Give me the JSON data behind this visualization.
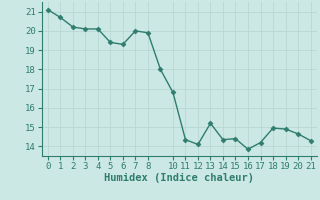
{
  "x": [
    0,
    1,
    2,
    3,
    4,
    5,
    6,
    7,
    8,
    9,
    10,
    11,
    12,
    13,
    14,
    15,
    16,
    17,
    18,
    19,
    20,
    21
  ],
  "y": [
    21.1,
    20.7,
    20.2,
    20.1,
    20.1,
    19.4,
    19.3,
    20.0,
    19.9,
    18.0,
    16.8,
    14.35,
    14.1,
    15.2,
    14.35,
    14.4,
    13.85,
    14.2,
    14.95,
    14.9,
    14.65,
    14.3
  ],
  "line_color": "#2e7d6e",
  "marker": "D",
  "markersize": 2.5,
  "linewidth": 1.0,
  "bg_color": "#cce8e4",
  "grid_color": "#b8d8d4",
  "tick_color": "#2e7d6e",
  "xlabel": "Humidex (Indice chaleur)",
  "xlabel_fontsize": 7.5,
  "xlim": [
    -0.5,
    21.5
  ],
  "ylim": [
    13.5,
    21.5
  ],
  "yticks": [
    14,
    15,
    16,
    17,
    18,
    19,
    20,
    21
  ],
  "xticks": [
    0,
    1,
    2,
    3,
    4,
    5,
    6,
    7,
    8,
    10,
    11,
    12,
    13,
    14,
    15,
    16,
    17,
    18,
    19,
    20,
    21
  ],
  "tick_fontsize": 6.5
}
